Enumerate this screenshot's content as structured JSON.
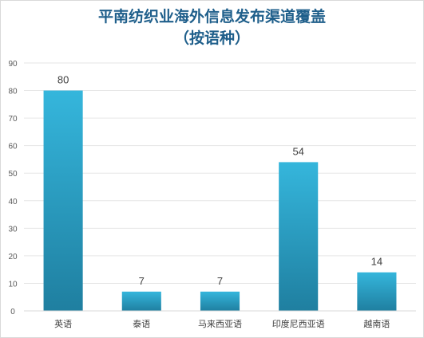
{
  "chart_data": {
    "type": "bar",
    "title": "平南纺织业海外信息发布渠道覆盖",
    "subtitle": "（按语种）",
    "categories": [
      "英语",
      "泰语",
      "马来西亚语",
      "印度尼西亚语",
      "越南语"
    ],
    "values": [
      80,
      7,
      7,
      54,
      14
    ],
    "data_labels": [
      "80",
      "7",
      "7",
      "54",
      "14"
    ],
    "ylim": [
      0,
      90
    ],
    "yticks": [
      0,
      10,
      20,
      30,
      40,
      50,
      60,
      70,
      80,
      90
    ],
    "xlabel": "",
    "ylabel": "",
    "grid": true,
    "legend": "none",
    "colors": {
      "bar_top": "#35b6dc",
      "bar_bottom": "#1f7fa0",
      "title": "#1f5f8b",
      "grid": "#e6e6e6"
    }
  }
}
